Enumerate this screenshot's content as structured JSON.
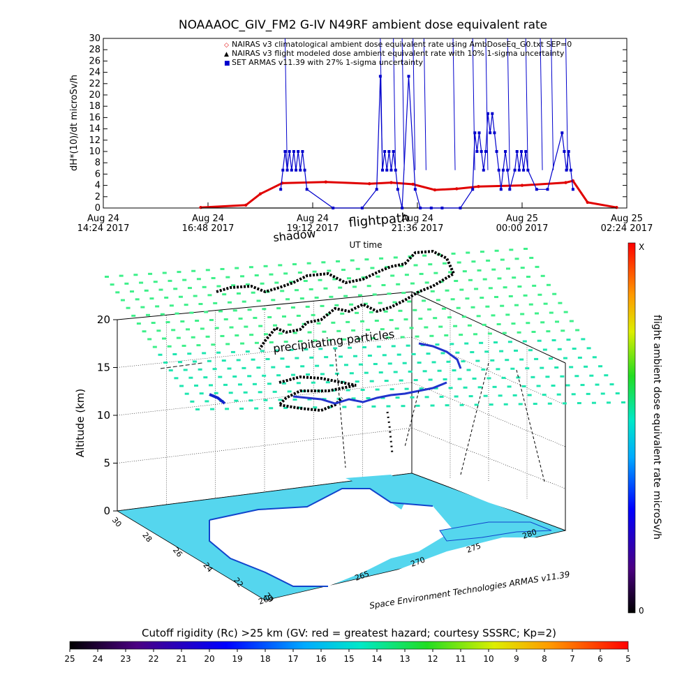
{
  "top_chart": {
    "title": "NOAAAOC_GIV_FM2 G-IV    N49RF  ambient dose equivalent rate",
    "ylabel": "dH*(10)/dt microSv/h",
    "y_ticks": [
      "0",
      "2",
      "4",
      "6",
      "8",
      "10",
      "12",
      "14",
      "16",
      "18",
      "20",
      "22",
      "24",
      "26",
      "28",
      "30"
    ],
    "x_ticks": [
      {
        "line1": "Aug 24",
        "line2": "14:24 2017"
      },
      {
        "line1": "Aug 24",
        "line2": "16:48 2017"
      },
      {
        "line1": "Aug 24",
        "line2": "19:12 2017"
      },
      {
        "line1": "Aug 24",
        "line2": "21:36 2017"
      },
      {
        "line1": "Aug 25",
        "line2": "00:00 2017"
      },
      {
        "line1": "Aug 25",
        "line2": "02:24 2017"
      }
    ],
    "xlabel": "UT time",
    "legend": [
      {
        "symbol": "◇",
        "color": "#e00000",
        "text": "NAIRAS v3 climatological ambient dose equivalent rate using AmbDoseEq_G0.txt SEP=0"
      },
      {
        "symbol": "▲",
        "color": "#000000",
        "text": "NAIRAS v3 flight modeled dose ambient equivalent rate with 10% 1-sigma uncertainty"
      },
      {
        "symbol": "■",
        "color": "#0000cc",
        "text": "SET ARMAS v11.39 with 27% 1-sigma uncertainty"
      }
    ]
  },
  "chart_data": {
    "type": "line",
    "x_range": [
      "2017-08-24 14:24",
      "2017-08-25 02:24"
    ],
    "ylim": [
      0,
      30
    ],
    "series": [
      {
        "name": "NAIRAS v3 climatological ambient dose equivalent rate using AmbDoseEq_G0.txt SEP=0",
        "color": "#e00000",
        "x": [
          "2017-08-24 16:38",
          "2017-08-24 17:40",
          "2017-08-24 18:00",
          "2017-08-24 18:30",
          "2017-08-24 19:30",
          "2017-08-24 20:30",
          "2017-08-24 21:00",
          "2017-08-24 21:30",
          "2017-08-24 22:00",
          "2017-08-24 22:30",
          "2017-08-24 23:00",
          "2017-08-25 00:00",
          "2017-08-25 01:00",
          "2017-08-25 01:10",
          "2017-08-25 01:30",
          "2017-08-25 02:10"
        ],
        "values": [
          0.1,
          0.5,
          2.5,
          4.4,
          4.6,
          4.3,
          4.5,
          4.2,
          3.2,
          3.4,
          3.8,
          4.0,
          4.5,
          4.8,
          1.0,
          0.1
        ]
      },
      {
        "name": "NAIRAS v3 flight modeled dose ambient equivalent rate with 10% 1-sigma uncertainty",
        "color": "#000000",
        "x": [
          "2017-08-24 16:38",
          "2017-08-25 02:10"
        ],
        "values": [
          0.0,
          0.0
        ]
      },
      {
        "name": "SET ARMAS v11.39 with 27% 1-sigma uncertainty",
        "color": "#0000cc",
        "x": [
          "2017-08-24 18:28",
          "2017-08-24 18:31",
          "2017-08-24 18:34",
          "2017-08-24 18:37",
          "2017-08-24 18:40",
          "2017-08-24 18:43",
          "2017-08-24 18:46",
          "2017-08-24 18:49",
          "2017-08-24 18:52",
          "2017-08-24 18:55",
          "2017-08-24 18:58",
          "2017-08-24 19:01",
          "2017-08-24 19:04",
          "2017-08-24 19:40",
          "2017-08-24 20:20",
          "2017-08-24 20:40",
          "2017-08-24 20:45",
          "2017-08-24 20:48",
          "2017-08-24 20:51",
          "2017-08-24 20:54",
          "2017-08-24 20:57",
          "2017-08-24 21:00",
          "2017-08-24 21:03",
          "2017-08-24 21:06",
          "2017-08-24 21:09",
          "2017-08-24 21:15",
          "2017-08-24 21:24",
          "2017-08-24 21:33",
          "2017-08-24 21:40",
          "2017-08-24 21:55",
          "2017-08-24 22:10",
          "2017-08-24 22:35",
          "2017-08-24 22:52",
          "2017-08-24 22:55",
          "2017-08-24 22:58",
          "2017-08-24 23:01",
          "2017-08-24 23:04",
          "2017-08-24 23:07",
          "2017-08-24 23:10",
          "2017-08-24 23:13",
          "2017-08-24 23:16",
          "2017-08-24 23:19",
          "2017-08-24 23:22",
          "2017-08-24 23:25",
          "2017-08-24 23:28",
          "2017-08-24 23:31",
          "2017-08-24 23:34",
          "2017-08-24 23:37",
          "2017-08-24 23:40",
          "2017-08-24 23:43",
          "2017-08-24 23:50",
          "2017-08-24 23:53",
          "2017-08-24 23:56",
          "2017-08-24 23:59",
          "2017-08-25 00:02",
          "2017-08-25 00:05",
          "2017-08-25 00:08",
          "2017-08-25 00:20",
          "2017-08-25 00:35",
          "2017-08-25 00:55",
          "2017-08-25 00:58",
          "2017-08-25 01:01",
          "2017-08-25 01:04",
          "2017-08-25 01:07",
          "2017-08-25 01:10"
        ],
        "values": [
          3.3,
          6.7,
          10.0,
          6.7,
          10.0,
          6.7,
          10.0,
          6.7,
          10.0,
          6.7,
          10.0,
          6.7,
          3.3,
          0.0,
          0.0,
          3.3,
          23.3,
          6.7,
          10.0,
          6.7,
          10.0,
          6.7,
          10.0,
          6.7,
          3.3,
          0.0,
          23.3,
          3.3,
          0.0,
          0.0,
          0.0,
          0.0,
          3.3,
          13.3,
          10.0,
          13.3,
          10.0,
          6.7,
          10.0,
          16.7,
          13.3,
          16.7,
          13.3,
          10.0,
          6.7,
          3.3,
          6.7,
          10.0,
          6.7,
          3.3,
          6.7,
          10.0,
          6.7,
          10.0,
          6.7,
          10.0,
          6.7,
          3.3,
          3.3,
          13.3,
          10.0,
          6.7,
          10.0,
          6.7,
          3.3
        ]
      }
    ]
  },
  "scene": {
    "labels": {
      "flightpath": "flightpath",
      "shadow": "shadow",
      "precip": "precipitating particles",
      "credit": "Space Environment Technologies ARMAS v11.39"
    },
    "altitude": {
      "title": "Altitude (km)",
      "ticks": [
        "0",
        "5",
        "10",
        "15",
        "20"
      ],
      "values": [
        0,
        5,
        10,
        15,
        20
      ]
    },
    "lat_ticks": [
      "30",
      "28",
      "26",
      "24",
      "22",
      "20"
    ],
    "lon_ticks": [
      "265",
      "270",
      "275",
      "280"
    ],
    "lon_left": "260"
  },
  "vertical_colorbar": {
    "title": "flight ambient dose equivalent rate microSv/h",
    "top_label": "X",
    "bottom_label": "0"
  },
  "bottom_colorbar": {
    "title": "Cutoff rigidity (Rc) >25 km (GV: red = greatest hazard; courtesy SSSRC; Kp=2)",
    "ticks": [
      "25",
      "24",
      "23",
      "22",
      "21",
      "20",
      "19",
      "18",
      "17",
      "16",
      "15",
      "14",
      "13",
      "12",
      "11",
      "10",
      "9",
      "8",
      "7",
      "6",
      "5"
    ]
  },
  "colors": {
    "land": "#55d6ee",
    "grid_dots": "#3ef08a",
    "nairas_red": "#e00000",
    "armas_blue": "#0000cc"
  }
}
